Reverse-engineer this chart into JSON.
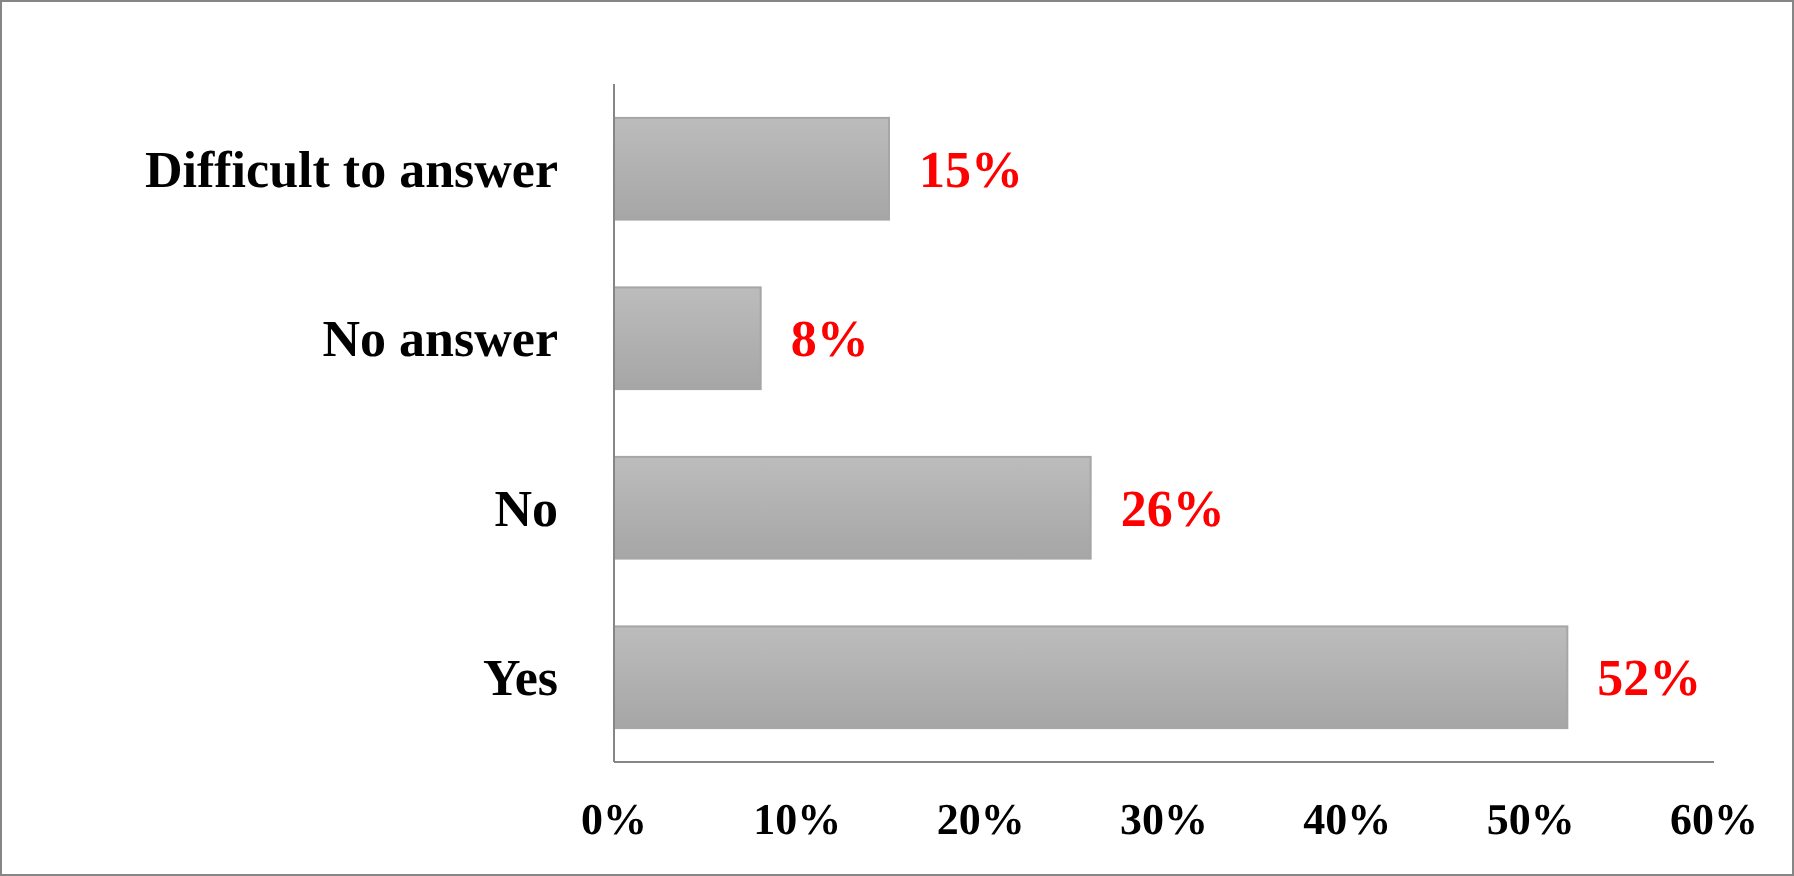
{
  "chart_data": {
    "type": "bar",
    "orientation": "horizontal",
    "categories": [
      "Difficult to answer",
      "No answer",
      "No",
      "Yes"
    ],
    "values": [
      15,
      8,
      26,
      52
    ],
    "value_labels": [
      "15%",
      "8%",
      "26%",
      "52%"
    ],
    "color": "#a6a6a6",
    "xlim": [
      0,
      60
    ],
    "xticks": [
      {
        "value": 0,
        "label": "0%"
      },
      {
        "value": 10,
        "label": "10%"
      },
      {
        "value": 20,
        "label": "20%"
      },
      {
        "value": 30,
        "label": "30%"
      },
      {
        "value": 40,
        "label": "40%"
      },
      {
        "value": 50,
        "label": "50%"
      },
      {
        "value": 60,
        "label": "60%"
      }
    ],
    "grid": false
  }
}
